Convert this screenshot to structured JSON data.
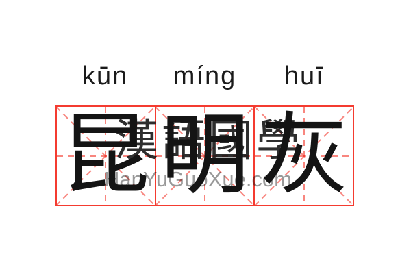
{
  "word": {
    "characters": [
      "昆",
      "明",
      "灰"
    ],
    "pinyin": [
      "kūn",
      "míng",
      "huī"
    ]
  },
  "watermark": {
    "cjk_text": "漢語國學",
    "site_text": "HanYuGuoXue.com"
  },
  "grid": {
    "cell_count": 3,
    "style": "mi-zi-ge",
    "guides": [
      "horizontal-center",
      "vertical-center",
      "diagonal-down",
      "diagonal-up"
    ]
  },
  "colors": {
    "background": "#ffffff",
    "grid_border_red": "#f43b30",
    "guide_dash_red": "rgba(244,59,48,0.62)",
    "ink_black": "#1a1a1a",
    "watermark_gray": "rgba(0,0,0,0.40)"
  }
}
